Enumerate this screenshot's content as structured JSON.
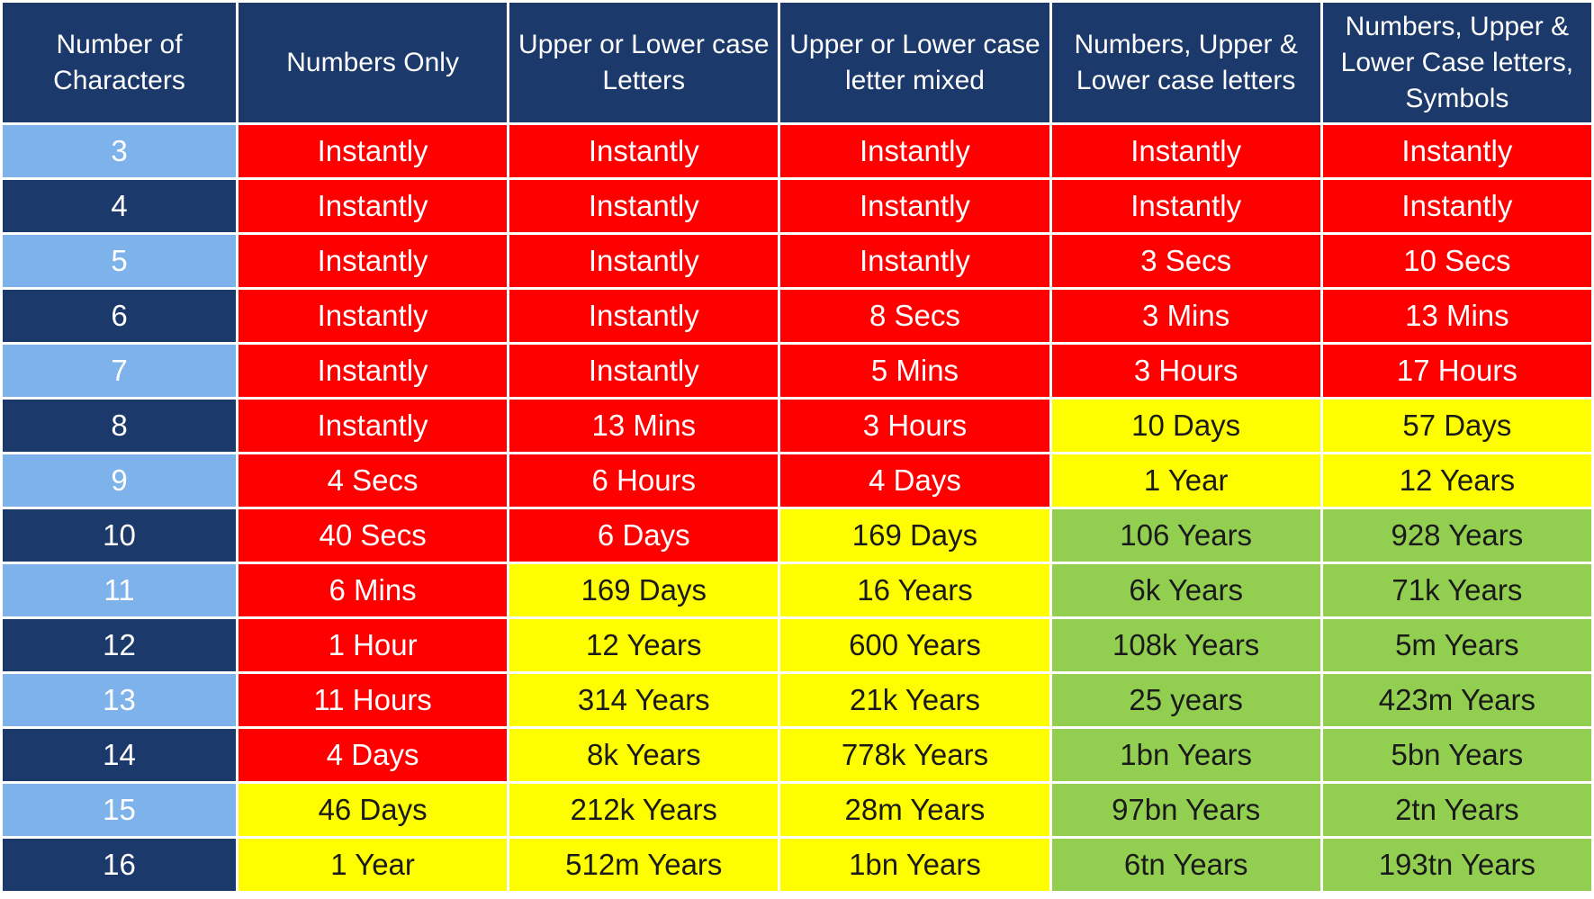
{
  "chart_data": {
    "type": "table",
    "columns": [
      "Number of Characters",
      "Numbers Only",
      "Upper or Lower case Letters",
      "Upper or Lower case letter mixed",
      "Numbers, Upper & Lower case letters",
      "Numbers, Upper & Lower Case letters, Symbols"
    ],
    "rows": [
      {
        "chars": "3",
        "cells": [
          "Instantly",
          "Instantly",
          "Instantly",
          "Instantly",
          "Instantly"
        ],
        "levels": [
          "red",
          "red",
          "red",
          "red",
          "red"
        ]
      },
      {
        "chars": "4",
        "cells": [
          "Instantly",
          "Instantly",
          "Instantly",
          "Instantly",
          "Instantly"
        ],
        "levels": [
          "red",
          "red",
          "red",
          "red",
          "red"
        ]
      },
      {
        "chars": "5",
        "cells": [
          "Instantly",
          "Instantly",
          "Instantly",
          "3 Secs",
          "10 Secs"
        ],
        "levels": [
          "red",
          "red",
          "red",
          "red",
          "red"
        ]
      },
      {
        "chars": "6",
        "cells": [
          "Instantly",
          "Instantly",
          "8 Secs",
          "3 Mins",
          "13 Mins"
        ],
        "levels": [
          "red",
          "red",
          "red",
          "red",
          "red"
        ]
      },
      {
        "chars": "7",
        "cells": [
          "Instantly",
          "Instantly",
          "5 Mins",
          "3 Hours",
          "17 Hours"
        ],
        "levels": [
          "red",
          "red",
          "red",
          "red",
          "red"
        ]
      },
      {
        "chars": "8",
        "cells": [
          "Instantly",
          "13 Mins",
          "3 Hours",
          "10 Days",
          "57 Days"
        ],
        "levels": [
          "red",
          "red",
          "red",
          "yellow",
          "yellow"
        ]
      },
      {
        "chars": "9",
        "cells": [
          "4 Secs",
          "6 Hours",
          "4 Days",
          "1 Year",
          "12 Years"
        ],
        "levels": [
          "red",
          "red",
          "red",
          "yellow",
          "yellow"
        ]
      },
      {
        "chars": "10",
        "cells": [
          "40 Secs",
          "6 Days",
          "169 Days",
          "106 Years",
          "928 Years"
        ],
        "levels": [
          "red",
          "red",
          "yellow",
          "green",
          "green"
        ]
      },
      {
        "chars": "11",
        "cells": [
          "6 Mins",
          "169 Days",
          "16 Years",
          "6k Years",
          "71k Years"
        ],
        "levels": [
          "red",
          "yellow",
          "yellow",
          "green",
          "green"
        ]
      },
      {
        "chars": "12",
        "cells": [
          "1 Hour",
          "12 Years",
          "600 Years",
          "108k Years",
          "5m Years"
        ],
        "levels": [
          "red",
          "yellow",
          "yellow",
          "green",
          "green"
        ]
      },
      {
        "chars": "13",
        "cells": [
          "11 Hours",
          "314 Years",
          "21k Years",
          "25 years",
          "423m Years"
        ],
        "levels": [
          "red",
          "yellow",
          "yellow",
          "green",
          "green"
        ]
      },
      {
        "chars": "14",
        "cells": [
          "4 Days",
          "8k Years",
          "778k Years",
          "1bn Years",
          "5bn Years"
        ],
        "levels": [
          "red",
          "yellow",
          "yellow",
          "green",
          "green"
        ]
      },
      {
        "chars": "15",
        "cells": [
          "46 Days",
          "212k Years",
          "28m Years",
          "97bn Years",
          "2tn Years"
        ],
        "levels": [
          "yellow",
          "yellow",
          "yellow",
          "green",
          "green"
        ]
      },
      {
        "chars": "16",
        "cells": [
          "1 Year",
          "512m Years",
          "1bn Years",
          "6tn Years",
          "193tn Years"
        ],
        "levels": [
          "yellow",
          "yellow",
          "yellow",
          "green",
          "green"
        ]
      }
    ],
    "colors": {
      "header_bg": "#1b3a6b",
      "row_label_light": "#7eb2ea",
      "row_label_dark": "#1b3a6b",
      "red": "#fe0000",
      "yellow": "#fefe00",
      "green": "#92cf50"
    }
  }
}
